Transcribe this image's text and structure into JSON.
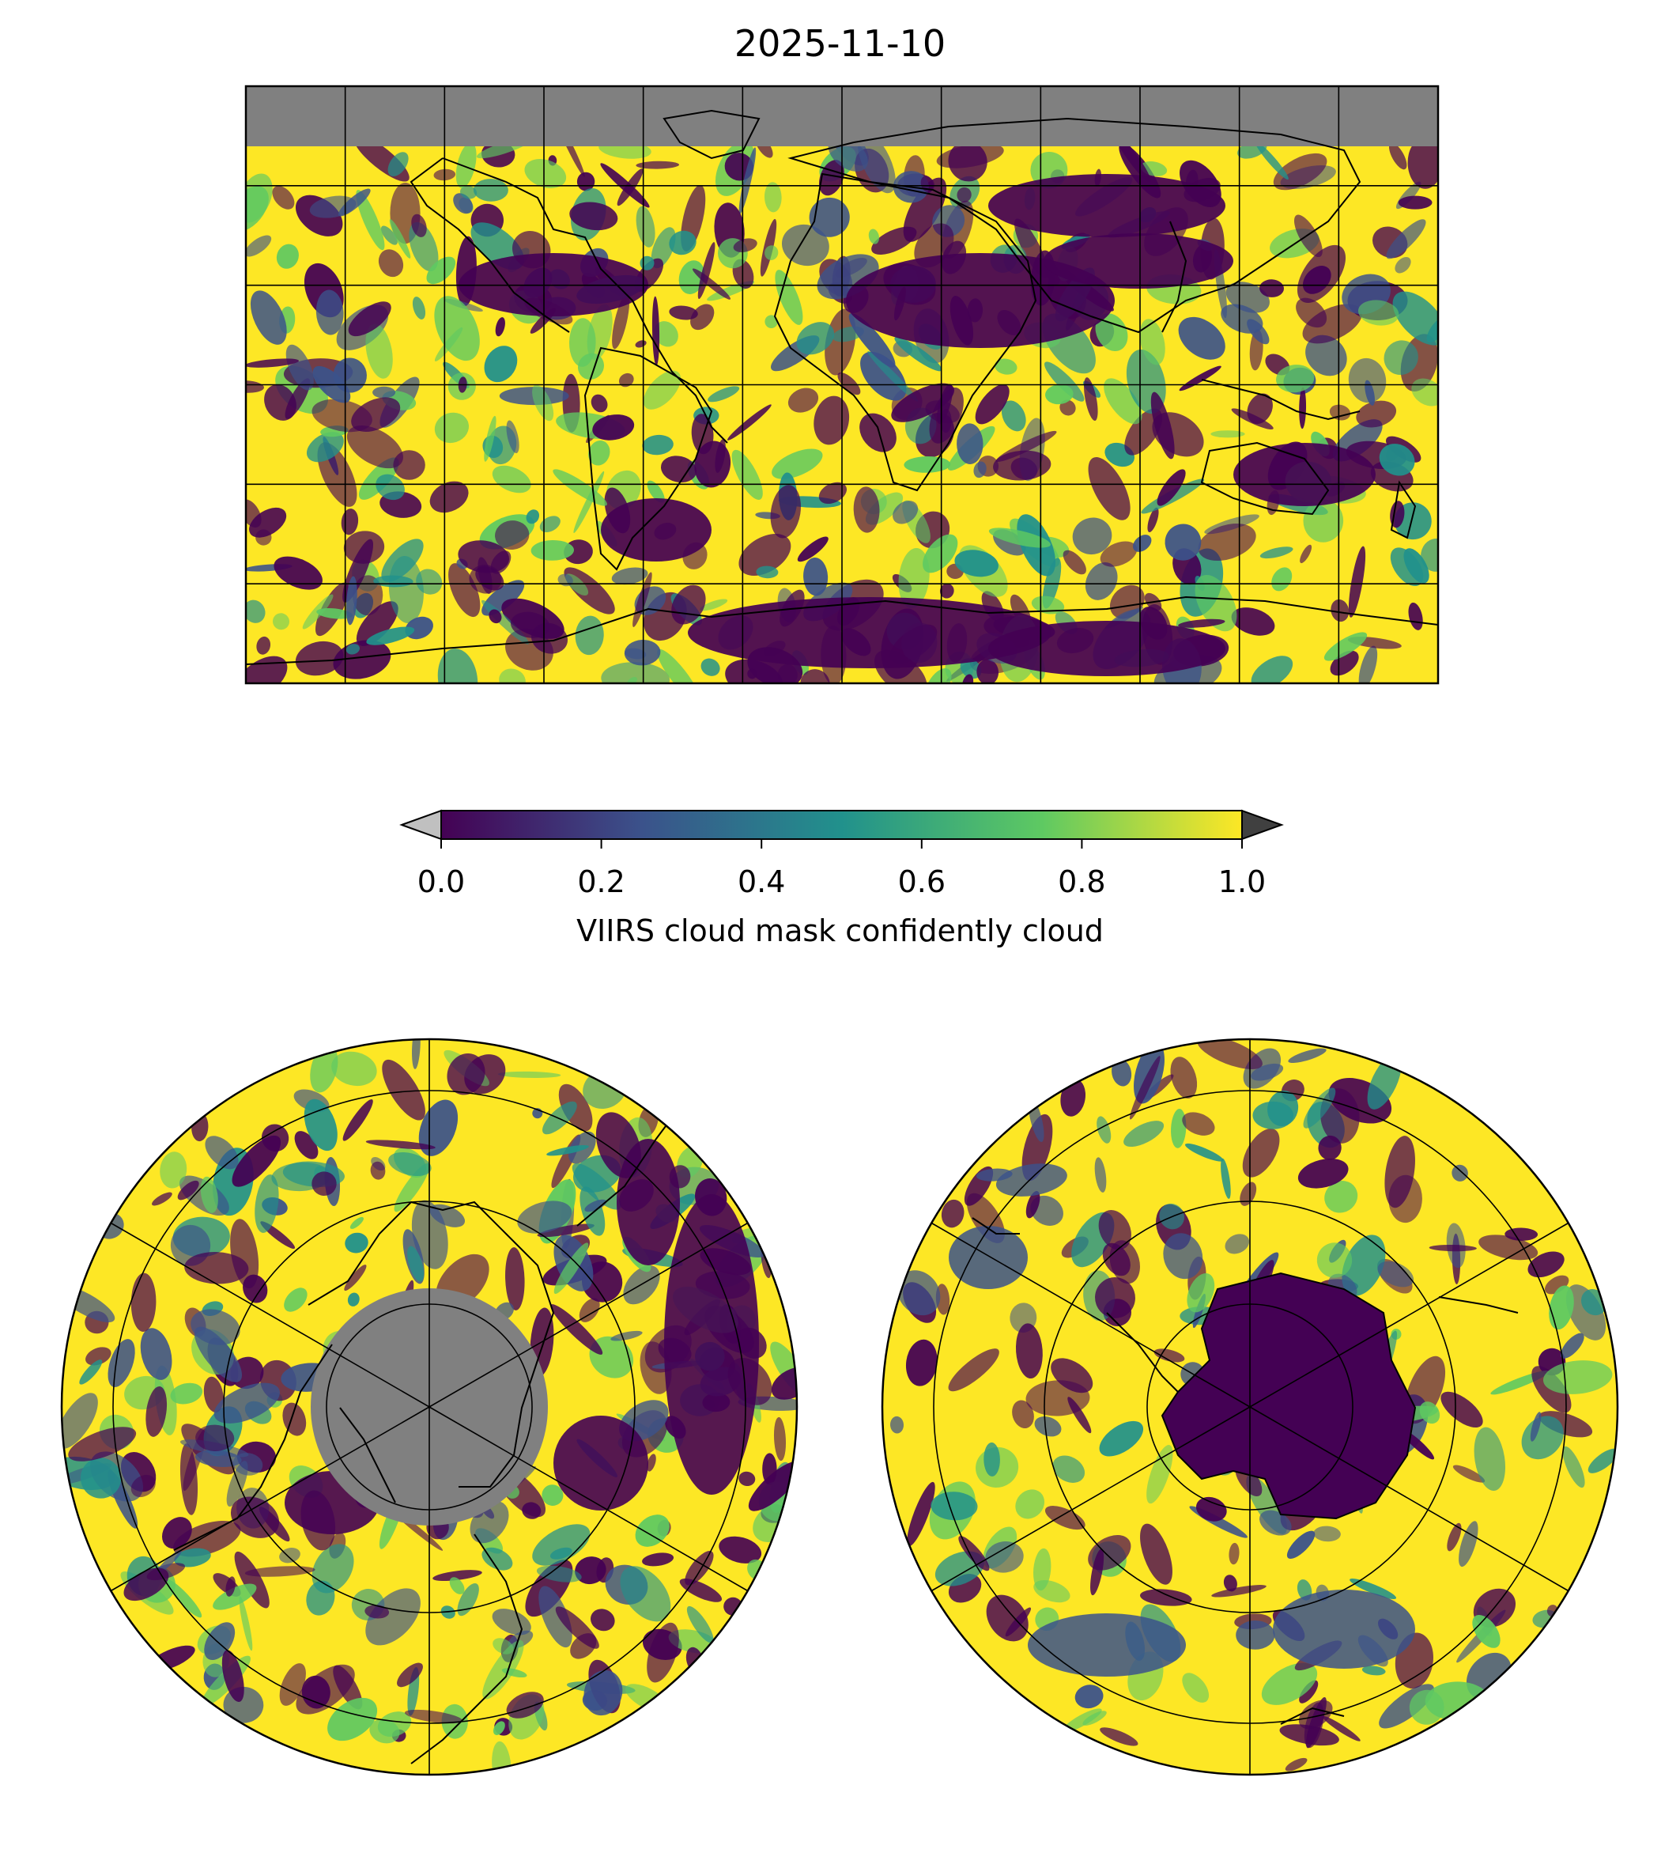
{
  "title": "2025-11-10",
  "colorbar": {
    "label": "VIIRS cloud mask confidently cloud",
    "ticks": [
      "0.0",
      "0.2",
      "0.4",
      "0.6",
      "0.8",
      "1.0"
    ],
    "range": [
      0.0,
      1.0
    ],
    "extend": "both",
    "under_color": "#c0c0c0",
    "over_color": "#404040",
    "colormap": "viridis",
    "cmap_stops": [
      "#440154",
      "#3b528b",
      "#21918c",
      "#5ec962",
      "#fde725"
    ]
  },
  "colors": {
    "missing_data": "#808080",
    "coastline": "#000000",
    "high_cloud": "#fde725",
    "clear": "#440154"
  },
  "panels": [
    {
      "id": "global-equirectangular",
      "projection": "PlateCarree",
      "gridlines": true
    },
    {
      "id": "north-polar",
      "projection": "NorthPolarStereo",
      "gridlines": true
    },
    {
      "id": "south-polar",
      "projection": "SouthPolarStereo",
      "gridlines": true
    }
  ]
}
